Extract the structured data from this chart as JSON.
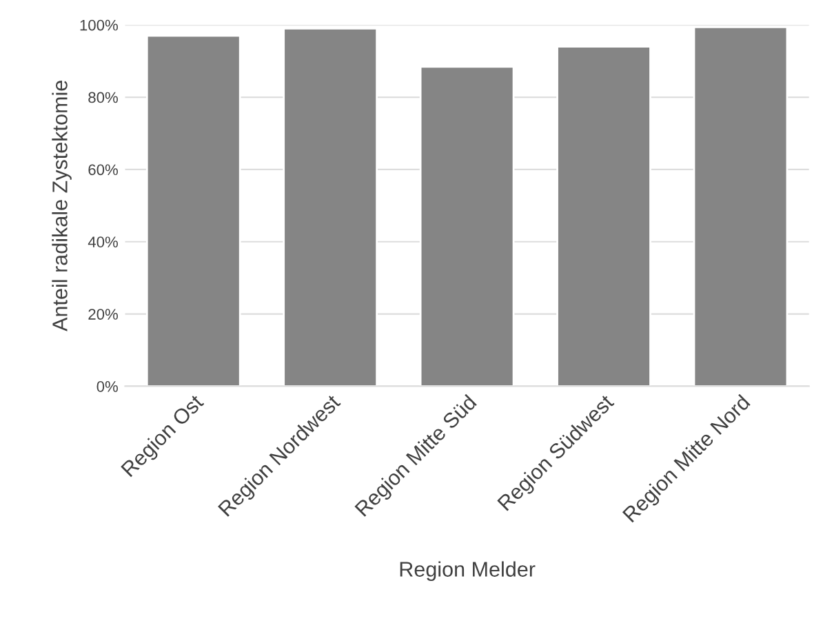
{
  "chart_data": {
    "type": "bar",
    "xlabel": "Region Melder",
    "ylabel": "Anteil radikale Zystektomie",
    "categories": [
      "Region Ost",
      "Region Nordwest",
      "Region Mitte Süd",
      "Region Südwest",
      "Region Mitte Nord"
    ],
    "values": [
      97,
      99,
      88.4,
      94,
      99.4
    ],
    "color": "#858585",
    "ylim": [
      0,
      100
    ],
    "yticks": [
      {
        "value": 0,
        "label": "0%"
      },
      {
        "value": 20,
        "label": "20%"
      },
      {
        "value": 40,
        "label": "40%"
      },
      {
        "value": 60,
        "label": "60%"
      },
      {
        "value": 80,
        "label": "80%"
      },
      {
        "value": 100,
        "label": "100%"
      }
    ],
    "grid": "y"
  }
}
